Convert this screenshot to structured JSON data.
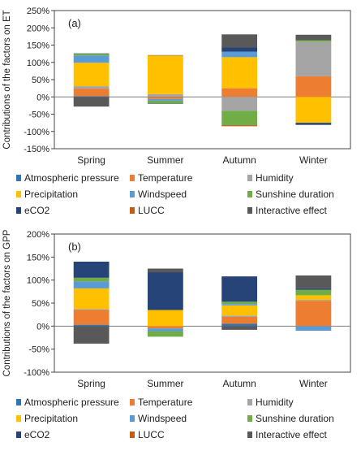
{
  "chart_data": [
    {
      "type": "bar",
      "stacked": true,
      "panel_label": "(a)",
      "ylabel": "Contributions of the factors on ET",
      "ylim": [
        -100,
        250
      ],
      "yticks": [
        "-150%",
        "-100%",
        "-50%",
        "0%",
        "50%",
        "100%",
        "150%",
        "200%",
        "250%"
      ],
      "ytick_values": [
        -150,
        -100,
        -50,
        0,
        50,
        100,
        150,
        200,
        250
      ],
      "y_min": -150,
      "categories": [
        "Spring",
        "Summer",
        "Autumn",
        "Winter"
      ],
      "grid": false,
      "legend_position": "bottom",
      "series": [
        {
          "name": "Atmospheric pressure",
          "color": "#2e75b6",
          "values": [
            2,
            1,
            0,
            0
          ]
        },
        {
          "name": "Temperature",
          "color": "#ed7d31",
          "values": [
            22,
            -6,
            25,
            60
          ]
        },
        {
          "name": "Humidity",
          "color": "#a5a5a5",
          "values": [
            7,
            7,
            -40,
            100
          ]
        },
        {
          "name": "Precipitation",
          "color": "#ffc000",
          "values": [
            68,
            112,
            90,
            -75
          ]
        },
        {
          "name": "Windspeed",
          "color": "#5b9bd5",
          "values": [
            21,
            -5,
            16,
            0
          ]
        },
        {
          "name": "Sunshine duration",
          "color": "#70ad47",
          "values": [
            5,
            -8,
            -42,
            4
          ]
        },
        {
          "name": "eCO2",
          "color": "#264478",
          "values": [
            1,
            -1,
            12,
            -6
          ]
        },
        {
          "name": "LUCC",
          "color": "#c55a11",
          "values": [
            0,
            0,
            -3,
            0
          ]
        },
        {
          "name": "Interactive effect",
          "color": "#595959",
          "values": [
            -28,
            1,
            38,
            16
          ]
        }
      ]
    },
    {
      "type": "bar",
      "stacked": true,
      "panel_label": "(b)",
      "ylabel": "Contributions of the factors on GPP",
      "ylim": [
        -100,
        200
      ],
      "yticks": [
        "-100%",
        "-50%",
        "0%",
        "50%",
        "100%",
        "150%",
        "200%"
      ],
      "ytick_values": [
        -100,
        -50,
        0,
        50,
        100,
        150,
        200
      ],
      "y_min": -100,
      "categories": [
        "Spring",
        "Summer",
        "Autumn",
        "Winter"
      ],
      "grid": false,
      "legend_position": "bottom",
      "series": [
        {
          "name": "Atmospheric pressure",
          "color": "#2e75b6",
          "values": [
            3,
            0,
            5,
            0
          ]
        },
        {
          "name": "Temperature",
          "color": "#ed7d31",
          "values": [
            32,
            -5,
            15,
            55
          ]
        },
        {
          "name": "Humidity",
          "color": "#a5a5a5",
          "values": [
            2,
            0,
            3,
            2
          ]
        },
        {
          "name": "Precipitation",
          "color": "#ffc000",
          "values": [
            45,
            35,
            22,
            10
          ]
        },
        {
          "name": "Windspeed",
          "color": "#5b9bd5",
          "values": [
            15,
            -6,
            3,
            -10
          ]
        },
        {
          "name": "Sunshine duration",
          "color": "#70ad47",
          "values": [
            8,
            -12,
            5,
            12
          ]
        },
        {
          "name": "eCO2",
          "color": "#264478",
          "values": [
            35,
            82,
            55,
            3
          ]
        },
        {
          "name": "LUCC",
          "color": "#c55a11",
          "values": [
            0,
            0,
            0,
            0
          ]
        },
        {
          "name": "Interactive effect",
          "color": "#595959",
          "values": [
            -38,
            8,
            -8,
            28
          ]
        }
      ]
    }
  ]
}
